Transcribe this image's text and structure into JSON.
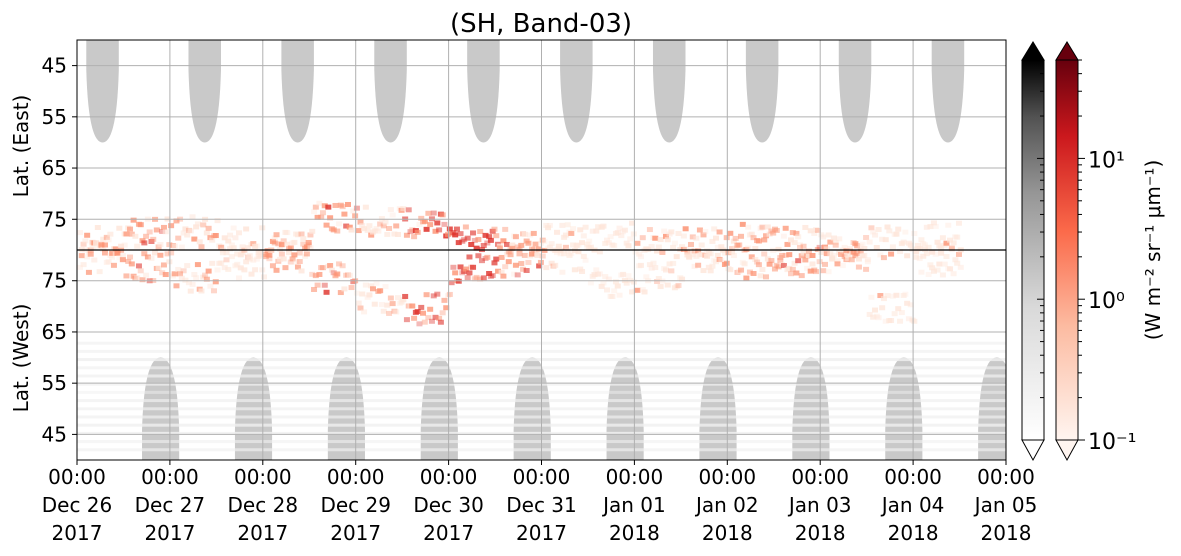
{
  "chart_data": {
    "type": "heatmap",
    "title": "(SH, Band-03)",
    "ylabel_top": "Lat. (East)",
    "ylabel_bottom": "Lat. (West)",
    "grid": true,
    "x_ticks": [
      {
        "time": "00:00",
        "date": "Dec 26",
        "year": "2017"
      },
      {
        "time": "00:00",
        "date": "Dec 27",
        "year": "2017"
      },
      {
        "time": "00:00",
        "date": "Dec 28",
        "year": "2017"
      },
      {
        "time": "00:00",
        "date": "Dec 29",
        "year": "2017"
      },
      {
        "time": "00:00",
        "date": "Dec 30",
        "year": "2017"
      },
      {
        "time": "00:00",
        "date": "Dec 31",
        "year": "2017"
      },
      {
        "time": "00:00",
        "date": "Jan 01",
        "year": "2018"
      },
      {
        "time": "00:00",
        "date": "Jan 02",
        "year": "2018"
      },
      {
        "time": "00:00",
        "date": "Jan 03",
        "year": "2018"
      },
      {
        "time": "00:00",
        "date": "Jan 04",
        "year": "2018"
      },
      {
        "time": "00:00",
        "date": "Jan 05",
        "year": "2018"
      }
    ],
    "xlim": [
      "2017-12-26 00:00",
      "2018-01-05 00:00"
    ],
    "y_ticks_east": [
      "45",
      "55",
      "65",
      "75"
    ],
    "y_ticks_west": [
      "75",
      "65",
      "55",
      "45"
    ],
    "y_tick_values_east": [
      45,
      55,
      65,
      75
    ],
    "y_tick_values_west": [
      75,
      65,
      55,
      45
    ],
    "ylim_east": [
      40,
      81
    ],
    "ylim_west": [
      81,
      40
    ],
    "divider_latitude": "pole",
    "colorbar": {
      "label": "(W m⁻² sr⁻¹ μm⁻¹)",
      "scale": "log",
      "range": [
        0.1,
        50
      ],
      "ticks": [
        "10⁻¹",
        "10⁰",
        "10¹"
      ],
      "tick_values": [
        0.1,
        1,
        10
      ],
      "colormaps": [
        "Greys",
        "Reds"
      ],
      "extend": "both"
    },
    "daylight_gaps_east_start_days": [
      0.1,
      1.2,
      2.2,
      3.2,
      4.2,
      5.2,
      6.2,
      7.2,
      8.2,
      9.2
    ],
    "daylight_gaps_west_start_days": [
      0.7,
      1.7,
      2.7,
      3.7,
      4.7,
      5.7,
      6.7,
      7.7,
      8.7,
      9.7
    ],
    "auroral_oval": {
      "latitude_east": [
        79,
        77,
        77,
        79,
        80,
        74,
        75,
        75,
        79,
        79,
        78,
        78,
        79,
        79,
        78,
        79,
        80,
        79,
        78
      ],
      "latitude_west": [
        80,
        78,
        76,
        79,
        80,
        76,
        72,
        70,
        78,
        79,
        80,
        75,
        76,
        80,
        79,
        79,
        80,
        70,
        79
      ],
      "days": [
        0,
        0.5,
        1,
        1.5,
        2,
        2.5,
        3,
        3.5,
        4,
        4.5,
        5,
        5.5,
        6,
        6.5,
        7,
        7.5,
        8,
        8.5,
        9
      ],
      "radiance": [
        2,
        3,
        2,
        1.5,
        2.5,
        3,
        2,
        4,
        5,
        3,
        1.5,
        1,
        2,
        2,
        2.5,
        3,
        2,
        1.5,
        1.5
      ]
    },
    "colors": {
      "grid": "#b0b0b0",
      "gap": "#c9c9c9",
      "aurora_low": "#fee5d9",
      "aurora_mid": "#fc9272",
      "aurora_high": "#de2d26"
    }
  }
}
